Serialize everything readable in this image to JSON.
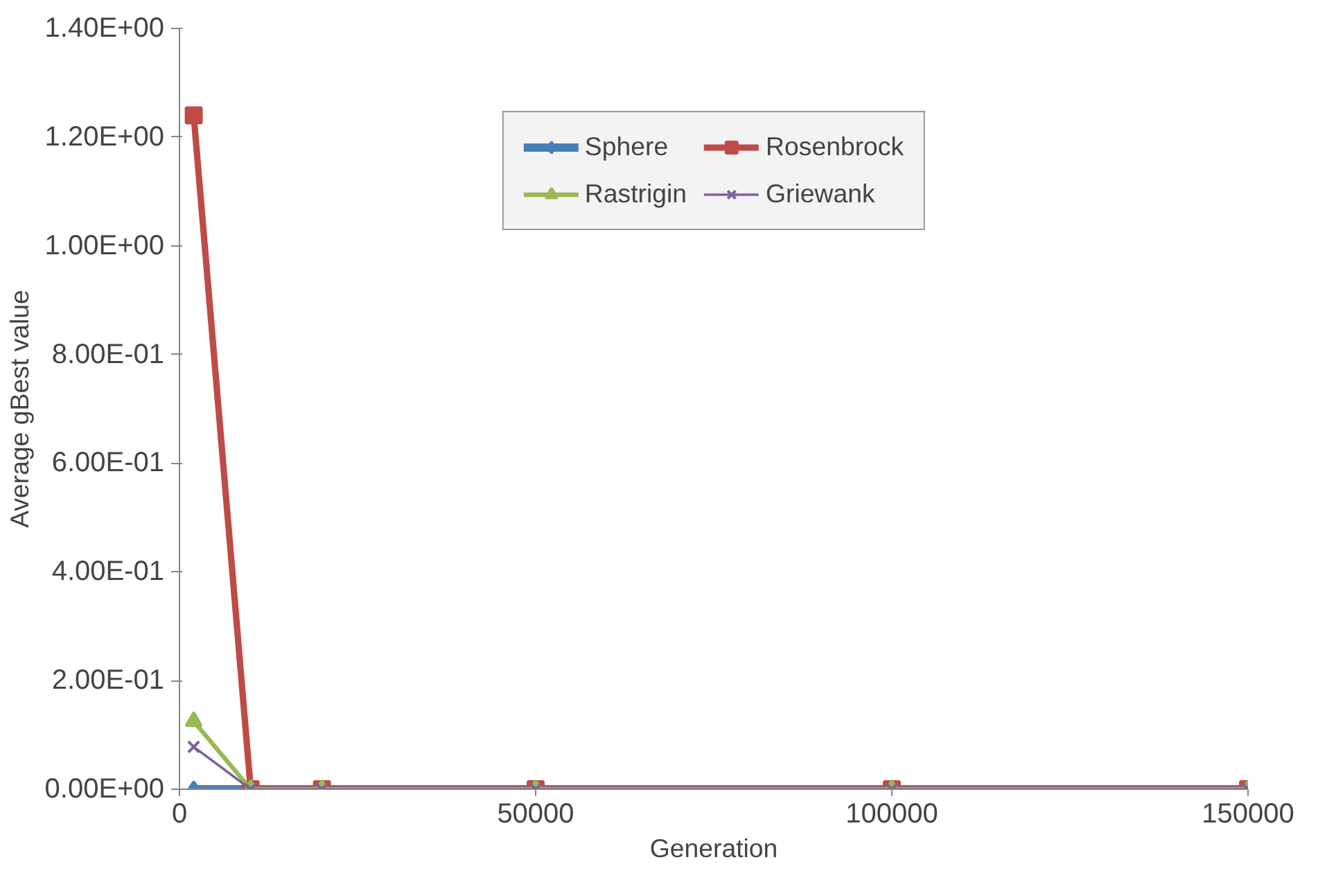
{
  "chart_data": {
    "type": "line",
    "xlabel": "Generation",
    "ylabel": "Average gBest value",
    "x": [
      2000,
      10000,
      20000,
      50000,
      100000,
      150000
    ],
    "series": [
      {
        "name": "Sphere",
        "color": "#4a7ebb",
        "marker": "diamond",
        "values": [
          0,
          0,
          0,
          0,
          0,
          0
        ]
      },
      {
        "name": "Rosenbrock",
        "color": "#be4b48",
        "marker": "square",
        "values": [
          1.24,
          0,
          0,
          0,
          0,
          0
        ]
      },
      {
        "name": "Rastrigin",
        "color": "#98b954",
        "marker": "triangle",
        "values": [
          0.125,
          0,
          0,
          0,
          0,
          0
        ]
      },
      {
        "name": "Griewank",
        "color": "#7d60a0",
        "marker": "cross",
        "values": [
          0.078,
          0,
          0,
          0,
          0,
          0
        ]
      }
    ],
    "xlim": [
      0,
      150000
    ],
    "xticks": [
      0,
      50000,
      100000,
      150000
    ],
    "ylim": [
      0,
      1.4
    ],
    "yticks": [
      {
        "value": 0,
        "label": "0.00E+00"
      },
      {
        "value": 0.2,
        "label": "2.00E-01"
      },
      {
        "value": 0.4,
        "label": "4.00E-01"
      },
      {
        "value": 0.6,
        "label": "6.00E-01"
      },
      {
        "value": 0.8,
        "label": "8.00E-01"
      },
      {
        "value": 1.0,
        "label": "1.00E+00"
      },
      {
        "value": 1.2,
        "label": "1.20E+00"
      },
      {
        "value": 1.4,
        "label": "1.40E+00"
      }
    ],
    "grid": false,
    "legend": "top",
    "line_style": "solid"
  }
}
